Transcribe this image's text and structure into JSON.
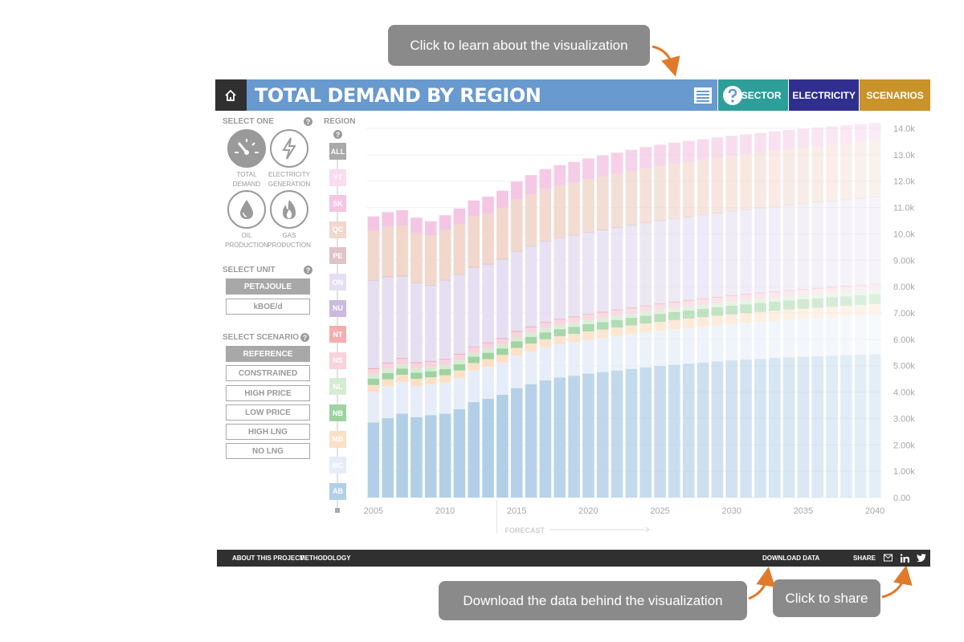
{
  "callouts": {
    "learn": "Click to learn about the visualization",
    "download": "Download the data behind the visualization",
    "share": "Click to share"
  },
  "header": {
    "title": "TOTAL DEMAND BY REGION",
    "nav": [
      "BY SECTOR",
      "ELECTRICITY",
      "SCENARIOS"
    ],
    "nav_colors": [
      "#2d9e98",
      "#302f8f",
      "#c9922a"
    ],
    "title_color": "#6899cf"
  },
  "left_panel": {
    "select_one_label": "SELECT ONE",
    "modes": [
      {
        "line1": "TOTAL",
        "line2": "DEMAND",
        "icon": "gauge-icon",
        "active": true
      },
      {
        "line1": "ELECTRICITY",
        "line2": "GENERATION",
        "icon": "lightning-icon",
        "active": false
      },
      {
        "line1": "OIL",
        "line2": "PRODUCTION",
        "icon": "oil-drop-icon",
        "active": false
      },
      {
        "line1": "GAS",
        "line2": "PRODUCTION",
        "icon": "gas-flame-icon",
        "active": false
      }
    ],
    "unit_label": "SELECT UNIT",
    "units": [
      "PETAJOULE",
      "kBOE/d"
    ],
    "selected_unit": "PETAJOULE",
    "scenario_label": "SELECT SCENARIO",
    "scenarios": [
      "REFERENCE",
      "CONSTRAINED",
      "HIGH PRICE",
      "LOW PRICE",
      "HIGH LNG",
      "NO LNG"
    ],
    "selected_scenario": "REFERENCE"
  },
  "regions": {
    "label": "REGION",
    "items": [
      {
        "code": "ALL",
        "color": "#a9a9a9"
      },
      {
        "code": "YT",
        "color": "#f9dcef"
      },
      {
        "code": "SK",
        "color": "#f4c6e4"
      },
      {
        "code": "QC",
        "color": "#f1d7cc"
      },
      {
        "code": "PE",
        "color": "#dec4c6"
      },
      {
        "code": "ON",
        "color": "#e6dff2"
      },
      {
        "code": "NU",
        "color": "#ccb9dc"
      },
      {
        "code": "NT",
        "color": "#f3aeb0"
      },
      {
        "code": "NS",
        "color": "#f8d2dc"
      },
      {
        "code": "NL",
        "color": "#d5ecd2"
      },
      {
        "code": "NB",
        "color": "#9ed3a1"
      },
      {
        "code": "MB",
        "color": "#fce0c6"
      },
      {
        "code": "BC",
        "color": "#e6edf8"
      },
      {
        "code": "AB",
        "color": "#b3cfe8"
      }
    ]
  },
  "chart_data": {
    "type": "bar",
    "stacked": true,
    "x": [
      2005,
      2006,
      2007,
      2008,
      2009,
      2010,
      2011,
      2012,
      2013,
      2014,
      2015,
      2016,
      2017,
      2018,
      2019,
      2020,
      2021,
      2022,
      2023,
      2024,
      2025,
      2026,
      2027,
      2028,
      2029,
      2030,
      2031,
      2032,
      2033,
      2034,
      2035,
      2036,
      2037,
      2038,
      2039,
      2040
    ],
    "x_ticks": [
      "2005",
      "2010",
      "2015",
      "2020",
      "2025",
      "2030",
      "2035",
      "2040"
    ],
    "y_ticks": [
      "0.00",
      "1.00k",
      "2.00k",
      "3.00k",
      "4.00k",
      "5.00k",
      "6.00k",
      "7.00k",
      "8.00k",
      "9.00k",
      "10.0k",
      "11.0k",
      "12.0k",
      "13.0k",
      "14.0k"
    ],
    "ylim": [
      0,
      14000
    ],
    "forecast_label": "FORECAST",
    "forecast_start": 2014,
    "series": [
      {
        "name": "AB",
        "color": "#b3cfe8",
        "values": [
          2850,
          3010,
          3180,
          3050,
          3120,
          3180,
          3350,
          3620,
          3750,
          3900,
          4150,
          4300,
          4450,
          4550,
          4620,
          4700,
          4760,
          4820,
          4880,
          4940,
          4990,
          5040,
          5080,
          5120,
          5160,
          5200,
          5230,
          5260,
          5290,
          5320,
          5340,
          5360,
          5380,
          5400,
          5420,
          5440
        ]
      },
      {
        "name": "BC",
        "color": "#e6edf8",
        "values": [
          1150,
          1200,
          1200,
          1180,
          1170,
          1180,
          1190,
          1200,
          1210,
          1220,
          1230,
          1240,
          1250,
          1260,
          1270,
          1280,
          1290,
          1300,
          1310,
          1320,
          1330,
          1340,
          1350,
          1360,
          1370,
          1380,
          1390,
          1400,
          1410,
          1420,
          1430,
          1440,
          1450,
          1460,
          1470,
          1480
        ]
      },
      {
        "name": "MB",
        "color": "#fce0c6",
        "values": [
          270,
          275,
          275,
          275,
          270,
          275,
          280,
          280,
          285,
          290,
          295,
          300,
          305,
          310,
          315,
          320,
          325,
          330,
          335,
          340,
          345,
          350,
          355,
          360,
          365,
          370,
          375,
          380,
          385,
          390,
          395,
          400,
          405,
          410,
          415,
          420
        ]
      },
      {
        "name": "NB",
        "color": "#9ed3a1",
        "values": [
          240,
          240,
          240,
          235,
          230,
          235,
          240,
          240,
          245,
          245,
          250,
          255,
          260,
          265,
          270,
          275,
          280,
          285,
          290,
          295,
          300,
          305,
          310,
          315,
          320,
          325,
          330,
          335,
          340,
          345,
          350,
          355,
          360,
          365,
          370,
          375
        ]
      },
      {
        "name": "NL",
        "color": "#d5ecd2",
        "values": [
          150,
          150,
          150,
          150,
          150,
          150,
          150,
          150,
          150,
          150,
          150,
          150,
          150,
          150,
          150,
          150,
          150,
          150,
          150,
          150,
          150,
          150,
          150,
          150,
          150,
          150,
          150,
          150,
          150,
          150,
          150,
          150,
          150,
          150,
          150,
          150
        ]
      },
      {
        "name": "NS",
        "color": "#f8d2dc",
        "values": [
          210,
          210,
          210,
          210,
          210,
          210,
          210,
          210,
          210,
          210,
          210,
          210,
          210,
          210,
          210,
          210,
          210,
          210,
          210,
          210,
          210,
          210,
          210,
          210,
          210,
          210,
          210,
          210,
          210,
          210,
          210,
          210,
          210,
          210,
          210,
          210
        ]
      },
      {
        "name": "NT",
        "color": "#f3aeb0",
        "values": [
          30,
          30,
          30,
          30,
          30,
          30,
          30,
          30,
          30,
          30,
          30,
          30,
          30,
          30,
          30,
          30,
          30,
          30,
          30,
          30,
          30,
          30,
          30,
          30,
          30,
          30,
          30,
          30,
          30,
          30,
          30,
          30,
          30,
          30,
          30,
          30
        ]
      },
      {
        "name": "NU",
        "color": "#ccb9dc",
        "values": [
          10,
          10,
          10,
          10,
          10,
          10,
          10,
          10,
          10,
          10,
          10,
          10,
          10,
          10,
          10,
          10,
          10,
          10,
          10,
          10,
          10,
          10,
          10,
          10,
          10,
          10,
          10,
          10,
          10,
          10,
          10,
          10,
          10,
          10,
          10,
          10
        ]
      },
      {
        "name": "ON",
        "color": "#e6dff2",
        "values": [
          3300,
          3230,
          3090,
          2980,
          2850,
          2960,
          2990,
          2980,
          2950,
          2970,
          3000,
          3020,
          3040,
          3050,
          3060,
          3070,
          3080,
          3090,
          3100,
          3110,
          3120,
          3130,
          3140,
          3150,
          3160,
          3170,
          3180,
          3190,
          3200,
          3210,
          3220,
          3230,
          3240,
          3250,
          3260,
          3270
        ]
      },
      {
        "name": "PE",
        "color": "#dec4c6",
        "values": [
          30,
          30,
          30,
          30,
          30,
          30,
          30,
          30,
          30,
          30,
          30,
          30,
          30,
          30,
          30,
          30,
          30,
          30,
          30,
          30,
          30,
          30,
          30,
          30,
          30,
          30,
          30,
          30,
          30,
          30,
          30,
          30,
          30,
          30,
          30,
          30
        ]
      },
      {
        "name": "QC",
        "color": "#f1d7cc",
        "values": [
          1880,
          1880,
          1900,
          1890,
          1870,
          1880,
          1900,
          1910,
          1920,
          1930,
          1950,
          1960,
          1970,
          1980,
          1990,
          2000,
          2010,
          2020,
          2030,
          2040,
          2050,
          2060,
          2065,
          2070,
          2075,
          2080,
          2085,
          2090,
          2095,
          2100,
          2105,
          2110,
          2115,
          2120,
          2125,
          2130
        ]
      },
      {
        "name": "SK",
        "color": "#f4c6e4",
        "values": [
          540,
          560,
          580,
          570,
          540,
          560,
          580,
          600,
          620,
          650,
          680,
          720,
          750,
          760,
          770,
          780,
          790,
          800,
          810,
          810,
          810,
          800,
          790,
          780,
          770,
          760,
          750,
          740,
          730,
          720,
          710,
          700,
          690,
          680,
          670,
          660
        ]
      },
      {
        "name": "YT",
        "color": "#f9dcef",
        "values": [
          10,
          10,
          10,
          10,
          10,
          10,
          10,
          10,
          10,
          10,
          10,
          10,
          10,
          10,
          10,
          10,
          10,
          10,
          10,
          10,
          10,
          10,
          10,
          10,
          10,
          10,
          10,
          10,
          10,
          10,
          10,
          10,
          10,
          10,
          10,
          10
        ]
      }
    ]
  },
  "footer": {
    "about": "ABOUT THIS PROJECT",
    "methodology": "METHODOLOGY",
    "download": "DOWNLOAD DATA",
    "share": "SHARE",
    "share_icons": [
      "email-icon",
      "linkedin-icon",
      "twitter-icon"
    ]
  }
}
